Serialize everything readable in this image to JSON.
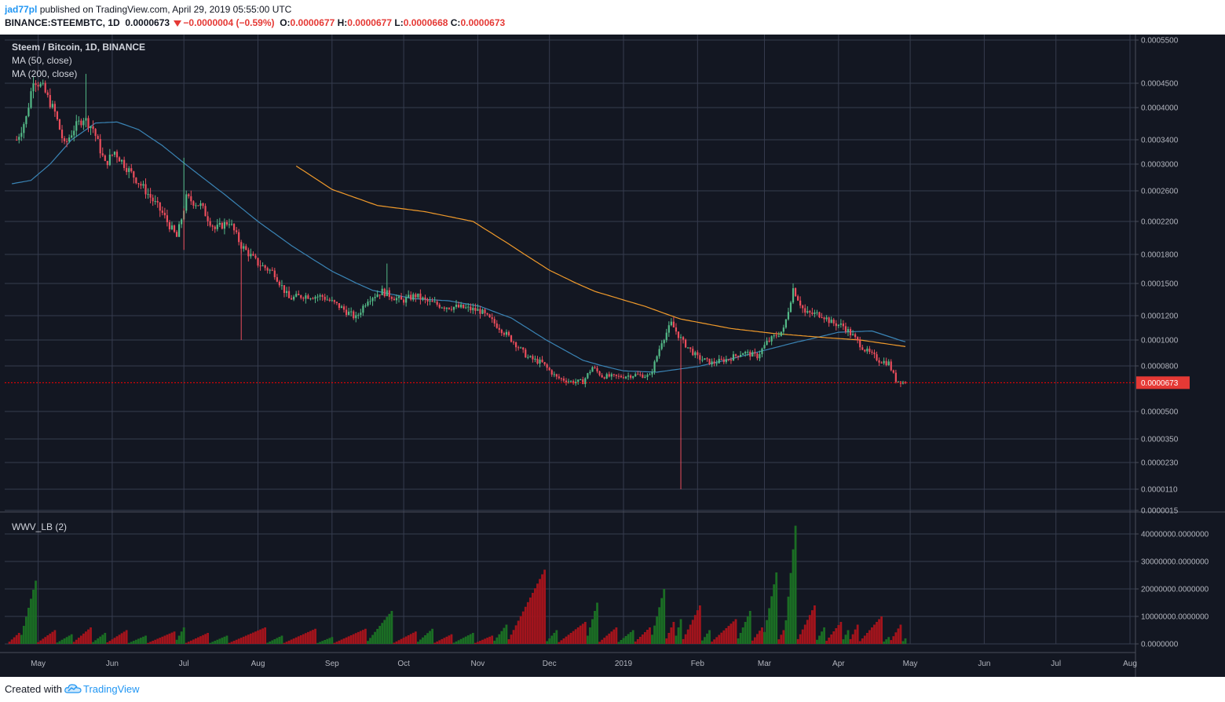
{
  "header": {
    "author": "jad77pl",
    "published": "published on TradingView.com, April 29, 2019 05:55:00 UTC",
    "symbol": "BINANCE:STEEMBTC, 1D",
    "last": "0.0000673",
    "change": "−0.0000004 (−0.59%)",
    "o_label": "O:",
    "o_value": "0.0000677",
    "h_label": "H:",
    "h_value": "0.0000677",
    "l_label": "L:",
    "l_value": "0.0000668",
    "c_label": "C:",
    "c_value": "0.0000673"
  },
  "legend": {
    "title": "Steem / Bitcoin, 1D, BINANCE",
    "ma50": "MA (50, close)",
    "ma200": "MA (200, close)",
    "wwv": "WWV_LB (2)"
  },
  "footer": {
    "created": "Created with",
    "brand": "TradingView"
  },
  "colors": {
    "background": "#131722",
    "grid": "#363c4e",
    "text": "#b2b5be",
    "up": "#53b987",
    "down": "#eb4d5c",
    "ma50": "#3a84b5",
    "ma200": "#f09a2b",
    "vol_up": "#1b6e24",
    "vol_down": "#a3141c",
    "price_line": "#ff0000"
  },
  "chart_data": [
    {
      "type": "candlestick",
      "title": "Steem / Bitcoin, 1D, BINANCE",
      "scale": "log",
      "x_tick_labels": [
        "May",
        "Jun",
        "Jul",
        "Aug",
        "Sep",
        "Oct",
        "Nov",
        "Dec",
        "2019",
        "Feb",
        "Mar",
        "Apr",
        "May",
        "Jun",
        "Jul",
        "Aug"
      ],
      "y_tick_labels": [
        "0.0005500",
        "0.0004500",
        "0.0004000",
        "0.0003400",
        "0.0003000",
        "0.0002600",
        "0.0002200",
        "0.0001800",
        "0.0001500",
        "0.0001200",
        "0.0001000",
        "0.0000800",
        "0.0000500",
        "0.0000350",
        "0.0000230",
        "0.0000110",
        "0.0000015"
      ],
      "y_ticks": [
        0.00055,
        0.00045,
        0.0004,
        0.00034,
        0.0003,
        0.00026,
        0.00022,
        0.00018,
        0.00015,
        0.00012,
        0.0001,
        8e-05,
        5e-05,
        3.5e-05,
        2.3e-05,
        1.1e-05,
        1.5e-06
      ],
      "last_price": 6.73e-05,
      "last_price_label": "0.0000673",
      "close_anchors": [
        [
          "2018-04-22",
          0.00034
        ],
        [
          "2018-04-26",
          0.00038
        ],
        [
          "2018-04-29",
          0.00046
        ],
        [
          "2018-05-03",
          0.00044
        ],
        [
          "2018-05-08",
          0.00039
        ],
        [
          "2018-05-12",
          0.00033
        ],
        [
          "2018-05-16",
          0.00036
        ],
        [
          "2018-05-20",
          0.00038
        ],
        [
          "2018-05-24",
          0.00036
        ],
        [
          "2018-05-29",
          0.0003
        ],
        [
          "2018-06-02",
          0.00032
        ],
        [
          "2018-06-08",
          0.00029
        ],
        [
          "2018-06-15",
          0.00026
        ],
        [
          "2018-06-22",
          0.00023
        ],
        [
          "2018-06-28",
          0.0002
        ],
        [
          "2018-07-02",
          0.00025
        ],
        [
          "2018-07-08",
          0.00024
        ],
        [
          "2018-07-14",
          0.00021
        ],
        [
          "2018-07-20",
          0.00022
        ],
        [
          "2018-07-25",
          0.00019
        ],
        [
          "2018-08-01",
          0.00017
        ],
        [
          "2018-08-08",
          0.00016
        ],
        [
          "2018-08-14",
          0.000135
        ],
        [
          "2018-08-20",
          0.000138
        ],
        [
          "2018-08-28",
          0.000137
        ],
        [
          "2018-09-04",
          0.000128
        ],
        [
          "2018-09-11",
          0.000118
        ],
        [
          "2018-09-16",
          0.000135
        ],
        [
          "2018-09-22",
          0.000142
        ],
        [
          "2018-09-30",
          0.000133
        ],
        [
          "2018-10-06",
          0.000138
        ],
        [
          "2018-10-11",
          0.000132
        ],
        [
          "2018-10-18",
          0.000128
        ],
        [
          "2018-10-25",
          0.000127
        ],
        [
          "2018-11-02",
          0.000124
        ],
        [
          "2018-11-10",
          0.00011
        ],
        [
          "2018-11-16",
          9.85e-05
        ],
        [
          "2018-11-22",
          8.6e-05
        ],
        [
          "2018-11-28",
          8.2e-05
        ],
        [
          "2018-12-04",
          7.1e-05
        ],
        [
          "2018-12-10",
          6.8e-05
        ],
        [
          "2018-12-15",
          6.8e-05
        ],
        [
          "2018-12-19",
          7.9e-05
        ],
        [
          "2018-12-23",
          7.2e-05
        ],
        [
          "2018-12-30",
          7.15e-05
        ],
        [
          "2019-01-06",
          7.3e-05
        ],
        [
          "2019-01-12",
          7.2e-05
        ],
        [
          "2019-01-17",
          9.9e-05
        ],
        [
          "2019-01-21",
          0.000113
        ],
        [
          "2019-01-26",
          9.8e-05
        ],
        [
          "2019-02-01",
          8.6e-05
        ],
        [
          "2019-02-07",
          8.2e-05
        ],
        [
          "2019-02-14",
          8.5e-05
        ],
        [
          "2019-02-20",
          9e-05
        ],
        [
          "2019-02-26",
          8.7e-05
        ],
        [
          "2019-03-02",
          9.8e-05
        ],
        [
          "2019-03-09",
          0.000108
        ],
        [
          "2019-03-13",
          0.000145
        ],
        [
          "2019-03-18",
          0.000122
        ],
        [
          "2019-03-25",
          0.000121
        ],
        [
          "2019-03-29",
          0.000114
        ],
        [
          "2019-04-03",
          0.000111
        ],
        [
          "2019-04-07",
          0.000103
        ],
        [
          "2019-04-12",
          9.2e-05
        ],
        [
          "2019-04-18",
          8.4e-05
        ],
        [
          "2019-04-22",
          8.2e-05
        ],
        [
          "2019-04-25",
          6.9e-05
        ],
        [
          "2019-04-29",
          6.73e-05
        ]
      ],
      "spikes": [
        {
          "date": "2018-05-21",
          "high": 0.00047
        },
        {
          "date": "2018-07-01",
          "high": 0.00031
        },
        {
          "date": "2018-07-01",
          "low": 0.000185
        },
        {
          "date": "2018-07-25",
          "low": 0.0001
        },
        {
          "date": "2018-09-24",
          "high": 0.00017
        },
        {
          "date": "2019-01-25",
          "low": 1.1e-05
        },
        {
          "date": "2019-03-13",
          "high": 0.000145
        }
      ],
      "series": [
        {
          "name": "MA (50, close)",
          "from": "2018-04-20",
          "anchors": [
            [
              "2018-04-20",
              0.00027
            ],
            [
              "2018-04-28",
              0.000275
            ],
            [
              "2018-05-06",
              0.0003
            ],
            [
              "2018-05-15",
              0.00034
            ],
            [
              "2018-05-25",
              0.00037
            ],
            [
              "2018-06-03",
              0.000372
            ],
            [
              "2018-06-12",
              0.000358
            ],
            [
              "2018-06-22",
              0.00033
            ],
            [
              "2018-07-05",
              0.00029
            ],
            [
              "2018-07-18",
              0.000255
            ],
            [
              "2018-08-01",
              0.00022
            ],
            [
              "2018-08-15",
              0.00019
            ],
            [
              "2018-09-01",
              0.000162
            ],
            [
              "2018-09-18",
              0.000143
            ],
            [
              "2018-10-05",
              0.000135
            ],
            [
              "2018-10-20",
              0.000133
            ],
            [
              "2018-11-02",
              0.000128
            ],
            [
              "2018-11-15",
              0.000118
            ],
            [
              "2018-12-01",
              9.85e-05
            ],
            [
              "2018-12-15",
              8.4e-05
            ],
            [
              "2019-01-01",
              7.6e-05
            ],
            [
              "2019-01-15",
              7.5e-05
            ],
            [
              "2019-02-01",
              7.95e-05
            ],
            [
              "2019-02-15",
              8.5e-05
            ],
            [
              "2019-03-01",
              9.15e-05
            ],
            [
              "2019-03-15",
              9.85e-05
            ],
            [
              "2019-04-01",
              0.000106
            ],
            [
              "2019-04-15",
              0.000107
            ],
            [
              "2019-04-29",
              9.85e-05
            ]
          ]
        },
        {
          "name": "MA (200, close)",
          "from": "2018-08-17",
          "anchors": [
            [
              "2018-08-17",
              0.000297
            ],
            [
              "2018-09-01",
              0.000262
            ],
            [
              "2018-09-20",
              0.00024
            ],
            [
              "2018-10-10",
              0.000232
            ],
            [
              "2018-10-30",
              0.00022
            ],
            [
              "2018-11-15",
              0.00019
            ],
            [
              "2018-12-01",
              0.000163
            ],
            [
              "2018-12-20",
              0.000142
            ],
            [
              "2019-01-10",
              0.000128
            ],
            [
              "2019-01-25",
              0.000117
            ],
            [
              "2019-02-15",
              0.000109
            ],
            [
              "2019-03-05",
              0.000105
            ],
            [
              "2019-03-25",
              0.000102
            ],
            [
              "2019-04-10",
              0.0001
            ],
            [
              "2019-04-29",
              9.45e-05
            ]
          ]
        }
      ]
    },
    {
      "type": "bar",
      "title": "WWV_LB (2)",
      "y_tick_labels": [
        "40000000.0000000",
        "30000000.0000000",
        "20000000.0000000",
        "10000000.0000000",
        "0.0000000"
      ],
      "y_ticks": [
        40000000,
        30000000,
        20000000,
        10000000,
        0
      ],
      "cycles": [
        {
          "start": "2018-04-19",
          "end": "2018-04-24",
          "peak": 4000000,
          "up": false
        },
        {
          "start": "2018-04-24",
          "end": "2018-05-01",
          "peak": 23000000,
          "up": true
        },
        {
          "start": "2018-05-01",
          "end": "2018-05-09",
          "peak": 5000000,
          "up": false
        },
        {
          "start": "2018-05-09",
          "end": "2018-05-16",
          "peak": 3500000,
          "up": true
        },
        {
          "start": "2018-05-16",
          "end": "2018-05-24",
          "peak": 6000000,
          "up": false
        },
        {
          "start": "2018-05-24",
          "end": "2018-05-30",
          "peak": 4000000,
          "up": true
        },
        {
          "start": "2018-05-30",
          "end": "2018-06-08",
          "peak": 5000000,
          "up": false
        },
        {
          "start": "2018-06-08",
          "end": "2018-06-16",
          "peak": 3000000,
          "up": true
        },
        {
          "start": "2018-06-16",
          "end": "2018-06-28",
          "peak": 4500000,
          "up": false
        },
        {
          "start": "2018-06-28",
          "end": "2018-07-02",
          "peak": 6000000,
          "up": true
        },
        {
          "start": "2018-07-02",
          "end": "2018-07-12",
          "peak": 4000000,
          "up": false
        },
        {
          "start": "2018-07-12",
          "end": "2018-07-20",
          "peak": 3000000,
          "up": true
        },
        {
          "start": "2018-07-20",
          "end": "2018-08-05",
          "peak": 6000000,
          "up": false
        },
        {
          "start": "2018-08-05",
          "end": "2018-08-12",
          "peak": 3000000,
          "up": true
        },
        {
          "start": "2018-08-12",
          "end": "2018-08-26",
          "peak": 5500000,
          "up": false
        },
        {
          "start": "2018-08-26",
          "end": "2018-09-02",
          "peak": 2500000,
          "up": true
        },
        {
          "start": "2018-09-02",
          "end": "2018-09-16",
          "peak": 5500000,
          "up": false
        },
        {
          "start": "2018-09-16",
          "end": "2018-09-27",
          "peak": 12000000,
          "up": true
        },
        {
          "start": "2018-09-27",
          "end": "2018-10-07",
          "peak": 4500000,
          "up": false
        },
        {
          "start": "2018-10-07",
          "end": "2018-10-14",
          "peak": 5500000,
          "up": true
        },
        {
          "start": "2018-10-14",
          "end": "2018-10-22",
          "peak": 3500000,
          "up": false
        },
        {
          "start": "2018-10-22",
          "end": "2018-10-31",
          "peak": 4000000,
          "up": true
        },
        {
          "start": "2018-10-31",
          "end": "2018-11-08",
          "peak": 3000000,
          "up": false
        },
        {
          "start": "2018-11-08",
          "end": "2018-11-14",
          "peak": 7000000,
          "up": true
        },
        {
          "start": "2018-11-14",
          "end": "2018-11-30",
          "peak": 27000000,
          "up": false
        },
        {
          "start": "2018-11-30",
          "end": "2018-12-05",
          "peak": 5000000,
          "up": true
        },
        {
          "start": "2018-12-05",
          "end": "2018-12-17",
          "peak": 8000000,
          "up": false
        },
        {
          "start": "2018-12-17",
          "end": "2018-12-22",
          "peak": 15000000,
          "up": true
        },
        {
          "start": "2018-12-22",
          "end": "2018-12-30",
          "peak": 6000000,
          "up": false
        },
        {
          "start": "2018-12-30",
          "end": "2019-01-06",
          "peak": 5000000,
          "up": true
        },
        {
          "start": "2019-01-06",
          "end": "2019-01-13",
          "peak": 6000000,
          "up": false
        },
        {
          "start": "2019-01-13",
          "end": "2019-01-19",
          "peak": 20000000,
          "up": true
        },
        {
          "start": "2019-01-19",
          "end": "2019-01-23",
          "peak": 8000000,
          "up": false
        },
        {
          "start": "2019-01-23",
          "end": "2019-01-26",
          "peak": 9000000,
          "up": true
        },
        {
          "start": "2019-01-26",
          "end": "2019-02-03",
          "peak": 14000000,
          "up": false
        },
        {
          "start": "2019-02-03",
          "end": "2019-02-07",
          "peak": 5000000,
          "up": true
        },
        {
          "start": "2019-02-07",
          "end": "2019-02-18",
          "peak": 9000000,
          "up": false
        },
        {
          "start": "2019-02-18",
          "end": "2019-02-24",
          "peak": 12000000,
          "up": true
        },
        {
          "start": "2019-02-24",
          "end": "2019-03-01",
          "peak": 6000000,
          "up": false
        },
        {
          "start": "2019-03-01",
          "end": "2019-03-07",
          "peak": 26000000,
          "up": true
        },
        {
          "start": "2019-03-07",
          "end": "2019-03-10",
          "peak": 5000000,
          "up": false
        },
        {
          "start": "2019-03-10",
          "end": "2019-03-15",
          "peak": 43000000,
          "up": true
        },
        {
          "start": "2019-03-15",
          "end": "2019-03-23",
          "peak": 14000000,
          "up": false
        },
        {
          "start": "2019-03-23",
          "end": "2019-03-27",
          "peak": 6000000,
          "up": true
        },
        {
          "start": "2019-03-27",
          "end": "2019-04-03",
          "peak": 8000000,
          "up": false
        },
        {
          "start": "2019-04-03",
          "end": "2019-04-06",
          "peak": 5000000,
          "up": true
        },
        {
          "start": "2019-04-06",
          "end": "2019-04-10",
          "peak": 7000000,
          "up": false
        },
        {
          "start": "2019-04-10",
          "end": "2019-04-20",
          "peak": 10000000,
          "up": false
        },
        {
          "start": "2019-04-20",
          "end": "2019-04-23",
          "peak": 2500000,
          "up": true
        },
        {
          "start": "2019-04-23",
          "end": "2019-04-28",
          "peak": 7000000,
          "up": false
        },
        {
          "start": "2019-04-28",
          "end": "2019-04-30",
          "peak": 2000000,
          "up": true
        }
      ]
    }
  ]
}
